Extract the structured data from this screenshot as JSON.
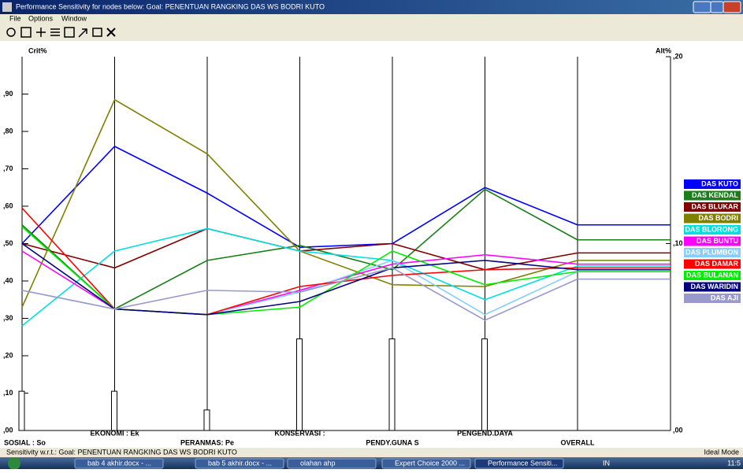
{
  "window": {
    "title": "Performance Sensitivity for nodes below: Goal: PENENTUAN RANGKING DAS WS BODRI KUTO",
    "menu": [
      "File",
      "Options",
      "Window"
    ],
    "status": "Sensitivity w.r.t.: Goal: PENENTUAN RANGKING DAS WS BODRI KUTO",
    "mode": "Ideal Mode"
  },
  "taskbar": {
    "items": [
      "bab 4 akhir.docx - ...",
      "bab 5 akhir.docx - ...",
      "olahan ahp",
      "Expert Choice 2000 ...",
      "Performance Sensiti..."
    ],
    "language": "IN",
    "clock": "11:5"
  },
  "chart_data": {
    "type": "line",
    "y_label": "Crit%",
    "y2_label": "Alt%",
    "categories": [
      "SOSIAL : So",
      "EKONOMI : Ek",
      "PERANMAS: Pe",
      "KONSERVASI :",
      "PENDY.GUNA S",
      "PENGEND.DAYA",
      "OVERALL"
    ],
    "bars": {
      "values": [
        0.105,
        0.105,
        0.055,
        0.245,
        0.245,
        0.245,
        null
      ],
      "color": "#ffffff"
    },
    "ylim": [
      0,
      1
    ],
    "yticks": [
      {
        "value": 0,
        "label": ",00"
      },
      {
        "value": 0.1,
        "label": ",10"
      },
      {
        "value": 0.2,
        "label": ",20"
      },
      {
        "value": 0.3,
        "label": ",30"
      },
      {
        "value": 0.4,
        "label": ",40"
      },
      {
        "value": 0.5,
        "label": ",50"
      },
      {
        "value": 0.6,
        "label": ",60"
      },
      {
        "value": 0.7,
        "label": ",70"
      },
      {
        "value": 0.8,
        "label": ",80"
      },
      {
        "value": 0.9,
        "label": ",90"
      }
    ],
    "y2lim": [
      0,
      0.2
    ],
    "y2ticks": [
      {
        "value": 0,
        "label": ",00"
      },
      {
        "value": 0.1,
        "label": ",10"
      },
      {
        "value": 0.2,
        "label": ",20"
      }
    ],
    "series": [
      {
        "name": "DAS KUTO",
        "color": "#0000ff",
        "axis": "y2",
        "values": [
          0.1,
          0.152,
          0.127,
          0.098,
          0.1,
          0.13,
          0.11
        ]
      },
      {
        "name": "DAS KENDAL",
        "color": "#1a7f1a",
        "axis": "y2",
        "values": [
          0.11,
          0.065,
          0.091,
          0.099,
          0.086,
          0.129,
          0.102
        ]
      },
      {
        "name": "DAS BLUKAR",
        "color": "#800000",
        "axis": "y2",
        "values": [
          0.1,
          0.087,
          0.108,
          0.096,
          0.1,
          0.086,
          0.095
        ]
      },
      {
        "name": "DAS BODRI",
        "color": "#808000",
        "axis": "y2",
        "values": [
          0.066,
          0.177,
          0.148,
          0.096,
          0.078,
          0.077,
          0.091
        ]
      },
      {
        "name": "DAS BLORONG",
        "color": "#00e0e0",
        "axis": "y2",
        "values": [
          0.056,
          0.096,
          0.108,
          0.096,
          0.091,
          0.07,
          0.088
        ]
      },
      {
        "name": "DAS BUNTU",
        "color": "#ff00ff",
        "axis": "y2",
        "values": [
          0.096,
          0.065,
          0.062,
          0.075,
          0.089,
          0.094,
          0.089
        ]
      },
      {
        "name": "DAS PLUMBON",
        "color": "#87cefa",
        "axis": "y2",
        "values": [
          0.075,
          0.065,
          0.062,
          0.074,
          0.091,
          0.062,
          0.085
        ]
      },
      {
        "name": "DAS DAMAR",
        "color": "#ff0000",
        "axis": "y2",
        "values": [
          0.119,
          0.065,
          0.062,
          0.077,
          0.083,
          0.086,
          0.087
        ]
      },
      {
        "name": "DAS BULANAN",
        "color": "#00ee00",
        "axis": "y2",
        "values": [
          0.109,
          0.065,
          0.062,
          0.066,
          0.096,
          0.078,
          0.085
        ]
      },
      {
        "name": "DAS WARIDIN",
        "color": "#000080",
        "axis": "y2",
        "values": [
          0.1,
          0.065,
          0.062,
          0.069,
          0.087,
          0.091,
          0.086
        ]
      },
      {
        "name": "DAS AJI",
        "color": "#9999cc",
        "axis": "y2",
        "values": [
          0.075,
          0.065,
          0.075,
          0.074,
          0.087,
          0.059,
          0.081
        ]
      }
    ]
  }
}
